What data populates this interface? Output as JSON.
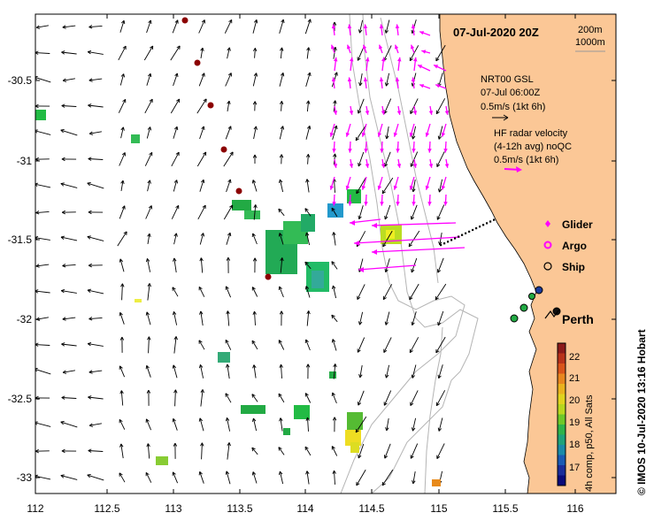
{
  "map": {
    "date_label": "07-Jul-2020 20Z",
    "isobath_200": "200m",
    "isobath_1000": "1000m",
    "lon_ticks": [
      "112",
      "112.5",
      "113",
      "113.5",
      "114",
      "114.5",
      "115",
      "115.5",
      "116"
    ],
    "lat_ticks": [
      "-30.5",
      "-31",
      "-31.5",
      "-32",
      "-32.5",
      "-33"
    ],
    "city_label": "Perth",
    "credit": "© IMOS 10-Jul-2020 13:16 Hobart",
    "colors": {
      "land": "#fbc796",
      "current_arrow": "#000000",
      "radar_arrow": "#ff00ff",
      "argo_dot": "#8b0000"
    }
  },
  "legend": {
    "nrt_line1": "NRT00 GSL",
    "nrt_line2": "07-Jul 06:00Z",
    "nrt_line3": "0.5m/s (1kt 6h)",
    "hf_line1": "HF radar velocity",
    "hf_line2": "(4-12h avg) noQC",
    "hf_line3": "0.5m/s (1kt 6h)",
    "glider": "Glider",
    "argo": "Argo",
    "ship": "Ship"
  },
  "colorbar": {
    "title": "4h comp, p50, All Sats",
    "ticks": [
      "22",
      "21",
      "20",
      "19",
      "18",
      "17"
    ]
  }
}
